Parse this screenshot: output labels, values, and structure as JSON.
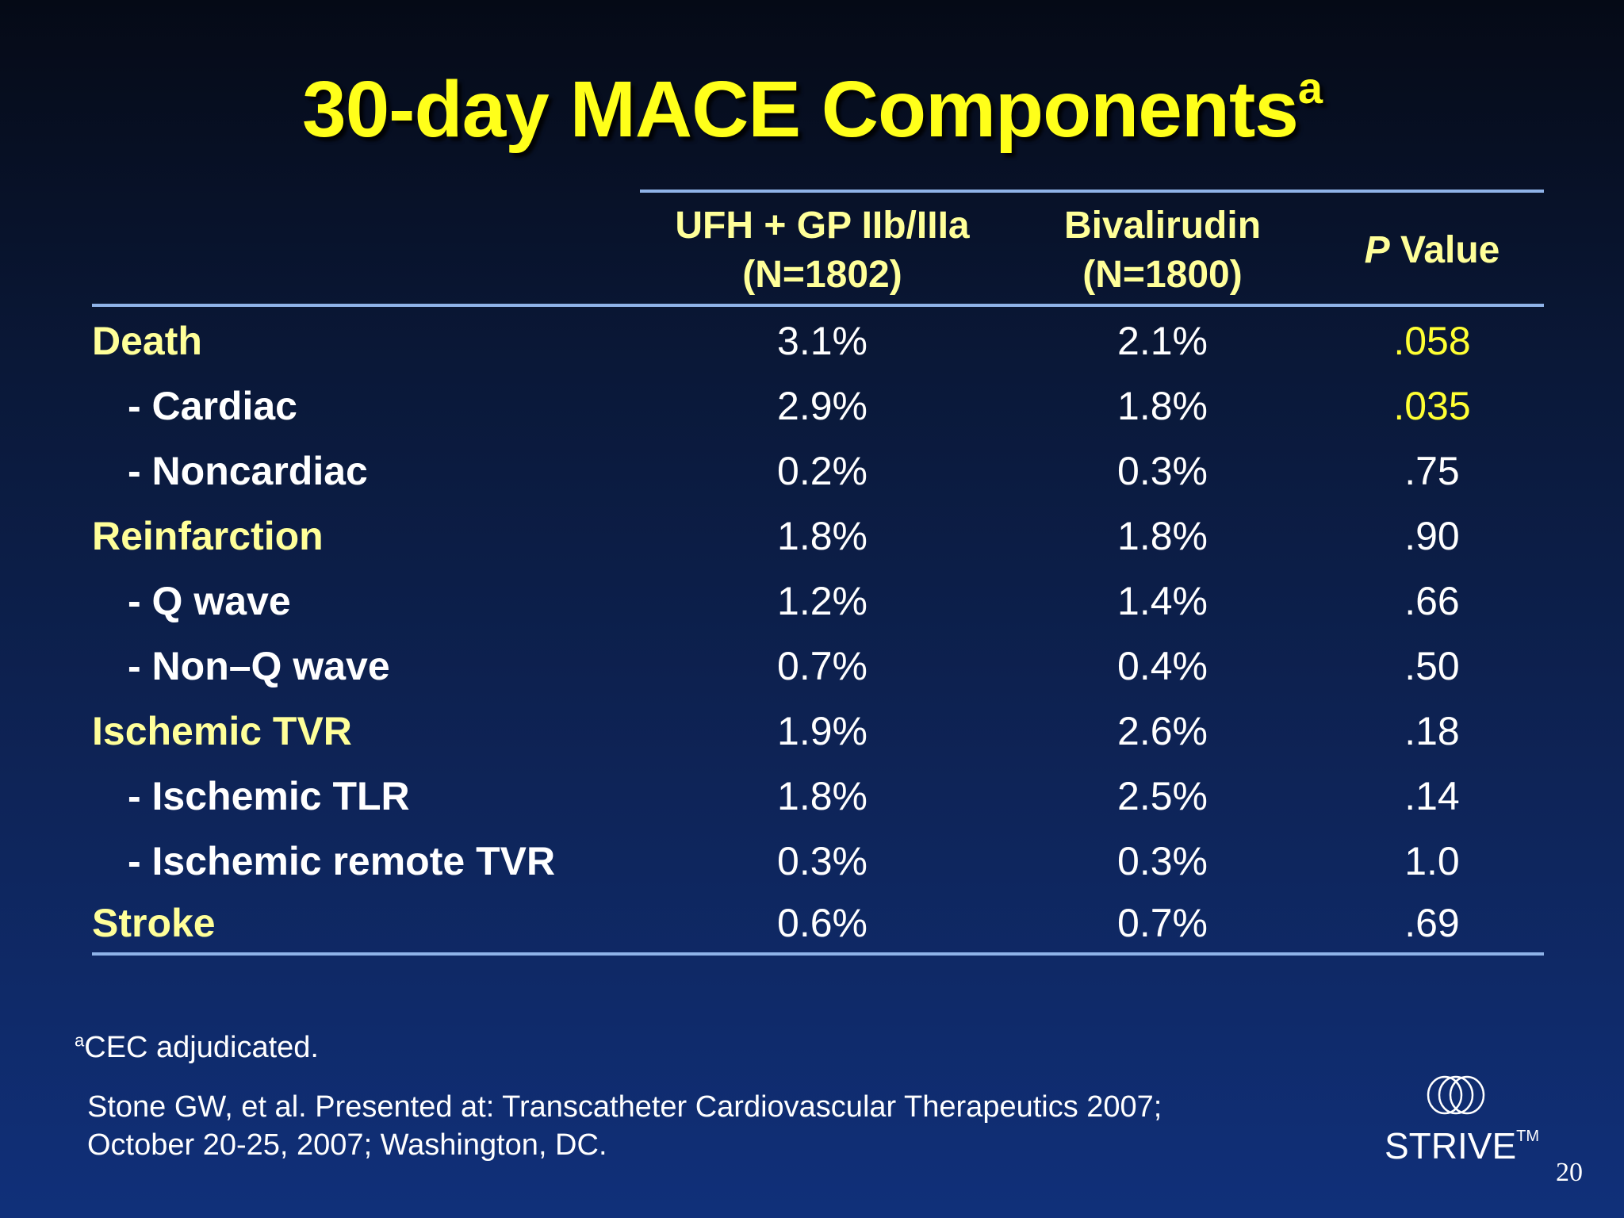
{
  "slide": {
    "title": "30-day MACE Components",
    "title_superscript": "a",
    "page_number": "20"
  },
  "table": {
    "headers": [
      {
        "line1": "UFH + GP IIb/IIIa",
        "line2": "(N=1802)"
      },
      {
        "line1": "Bivalirudin",
        "line2": "(N=1800)"
      },
      {
        "italic": "P",
        "rest": " Value"
      }
    ],
    "rows": [
      {
        "label": "Death",
        "ufh": "3.1%",
        "biv": "2.1%",
        "p": ".058"
      },
      {
        "label": "- Cardiac",
        "ufh": "2.9%",
        "biv": "1.8%",
        "p": ".035"
      },
      {
        "label": "- Noncardiac",
        "ufh": "0.2%",
        "biv": "0.3%",
        "p": ".75"
      },
      {
        "label": "Reinfarction",
        "ufh": "1.8%",
        "biv": "1.8%",
        "p": ".90"
      },
      {
        "label": "- Q wave",
        "ufh": "1.2%",
        "biv": "1.4%",
        "p": ".66"
      },
      {
        "label": "- Non–Q wave",
        "ufh": "0.7%",
        "biv": "0.4%",
        "p": ".50"
      },
      {
        "label": "Ischemic TVR",
        "ufh": "1.9%",
        "biv": "2.6%",
        "p": ".18"
      },
      {
        "label": "- Ischemic TLR",
        "ufh": "1.8%",
        "biv": "2.5%",
        "p": ".14"
      },
      {
        "label": "- Ischemic remote TVR",
        "ufh": "0.3%",
        "biv": "0.3%",
        "p": "1.0"
      },
      {
        "label": "Stroke",
        "ufh": "0.6%",
        "biv": "0.7%",
        "p": ".69"
      }
    ]
  },
  "footnote": {
    "marker": "a",
    "text": "CEC adjudicated."
  },
  "reference": {
    "line1": "Stone GW, et al. Presented at: Transcatheter Cardiovascular Therapeutics 2007;",
    "line2": "October 20-25, 2007; Washington, DC."
  },
  "logo": {
    "icon": "interlocking-rings-icon",
    "text": "STRIVE",
    "trademark": "TM"
  },
  "colors": {
    "title": "#ffff1a",
    "heading_text": "#ffff99",
    "highlight_p": "#ffff33",
    "body_text": "#ffffff",
    "rule": "#8fb3e8"
  }
}
